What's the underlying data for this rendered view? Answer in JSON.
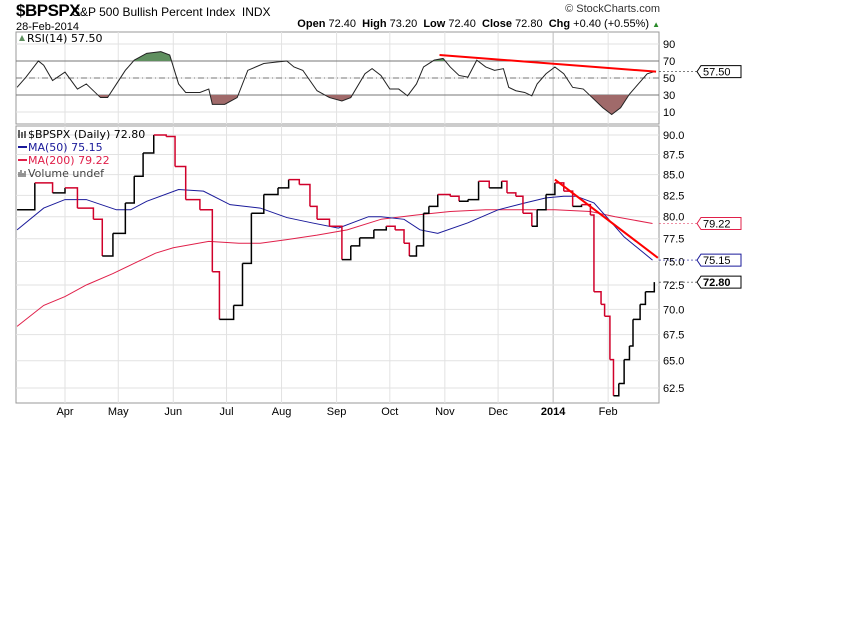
{
  "header": {
    "symbol": "$BPSPX",
    "name": "S&P 500 Bullish Percent Index",
    "exchange": "INDX",
    "copyright": "© StockCharts.com",
    "date": "28-Feb-2014",
    "open_label": "Open",
    "open": "72.40",
    "high_label": "High",
    "high": "73.20",
    "low_label": "Low",
    "low": "72.40",
    "close_label": "Close",
    "close": "72.80",
    "chg_label": "Chg",
    "chg": "+0.40 (+0.55%)",
    "chg_arrow": "▲"
  },
  "colors": {
    "up": "#000000",
    "down": "#d0002a",
    "ma50": "#1a1a9a",
    "ma200": "#e0204a",
    "trend": "#ff0000",
    "overbought": "#5f8f5f",
    "oversold": "#a06a6a",
    "grid": "#e2e2e2"
  },
  "chart_data": [
    {
      "type": "line",
      "title": "RSI(14) 57.50",
      "legend": "RSI(14) 57.50",
      "ylim": [
        0,
        100
      ],
      "yticks": [
        90,
        70,
        50,
        30,
        10
      ],
      "levels": {
        "overbought": 70,
        "mid": 50,
        "oversold": 30
      },
      "last_value_label": "57.50",
      "series": [
        {
          "name": "RSI(14)",
          "points": [
            [
              4,
              39
            ],
            [
              9,
              51
            ],
            [
              16,
              70
            ],
            [
              19,
              65
            ],
            [
              24,
              47
            ],
            [
              31,
              57
            ],
            [
              38,
              37
            ],
            [
              43,
              43
            ],
            [
              51,
              27
            ],
            [
              55,
              27
            ],
            [
              60,
              43
            ],
            [
              65,
              59
            ],
            [
              70,
              71
            ],
            [
              77,
              79
            ],
            [
              85,
              81
            ],
            [
              90,
              77
            ],
            [
              95,
              43
            ],
            [
              99,
              33
            ],
            [
              107,
              33
            ],
            [
              112,
              37
            ],
            [
              114,
              19
            ],
            [
              121,
              19
            ],
            [
              128,
              27
            ],
            [
              134,
              59
            ],
            [
              143,
              67
            ],
            [
              151,
              69
            ],
            [
              156,
              70
            ],
            [
              160,
              63
            ],
            [
              165,
              59
            ],
            [
              173,
              35
            ],
            [
              180,
              27
            ],
            [
              187,
              23
            ],
            [
              192,
              27
            ],
            [
              200,
              55
            ],
            [
              204,
              61
            ],
            [
              209,
              53
            ],
            [
              214,
              37
            ],
            [
              219,
              37
            ],
            [
              224,
              29
            ],
            [
              229,
              43
            ],
            [
              233,
              63
            ],
            [
              239,
              71
            ],
            [
              244,
              73
            ],
            [
              248,
              63
            ],
            [
              253,
              53
            ],
            [
              258,
              51
            ],
            [
              263,
              71
            ],
            [
              268,
              63
            ],
            [
              273,
              59
            ],
            [
              278,
              61
            ],
            [
              281,
              39
            ],
            [
              285,
              35
            ],
            [
              290,
              33
            ],
            [
              294,
              29
            ],
            [
              297,
              43
            ],
            [
              302,
              55
            ],
            [
              307,
              63
            ],
            [
              312,
              55
            ],
            [
              317,
              39
            ],
            [
              323,
              37
            ],
            [
              328,
              27
            ],
            [
              334,
              15
            ],
            [
              339,
              7
            ],
            [
              344,
              15
            ],
            [
              349,
              31
            ],
            [
              354,
              43
            ],
            [
              359,
              55
            ],
            [
              363,
              57.5
            ]
          ]
        }
      ],
      "trendline": [
        [
          242,
          77
        ],
        [
          364,
          57.5
        ]
      ]
    },
    {
      "type": "line",
      "legend": "$BPSPX (Daily) 72.80",
      "scale": "log",
      "ylim": [
        61.2,
        91.7
      ],
      "yticks": [
        "90.0",
        "87.5",
        "85.0",
        "82.5",
        "80.0",
        "77.5",
        "75.0",
        "72.5",
        "70.0",
        "67.5",
        "65.0",
        "62.5"
      ],
      "xticks": [
        {
          "label": "Apr",
          "day": 31
        },
        {
          "label": "May",
          "day": 61
        },
        {
          "label": "Jun",
          "day": 92
        },
        {
          "label": "Jul",
          "day": 122
        },
        {
          "label": "Aug",
          "day": 153
        },
        {
          "label": "Sep",
          "day": 184
        },
        {
          "label": "Oct",
          "day": 214
        },
        {
          "label": "Nov",
          "day": 245
        },
        {
          "label": "Dec",
          "day": 275
        },
        {
          "label": "2014",
          "day": 306,
          "bold": true
        },
        {
          "label": "Feb",
          "day": 337
        }
      ],
      "xlim_days": [
        4,
        364
      ],
      "series": [
        {
          "name": "$BPSPX",
          "label": "$BPSPX (Daily) 72.80",
          "last_label": "72.80",
          "points": [
            [
              4,
              80.8
            ],
            [
              14,
              84.0
            ],
            [
              24,
              82.8
            ],
            [
              31,
              83.4
            ],
            [
              38,
              81.0
            ],
            [
              47,
              79.7
            ],
            [
              52,
              75.6
            ],
            [
              58,
              78.1
            ],
            [
              65,
              81.6
            ],
            [
              70,
              84.8
            ],
            [
              75,
              87.7
            ],
            [
              81,
              90.0
            ],
            [
              88,
              89.8
            ],
            [
              93,
              86.0
            ],
            [
              99,
              82.0
            ],
            [
              107,
              80.8
            ],
            [
              114,
              73.9
            ],
            [
              118,
              69.0
            ],
            [
              126,
              70.4
            ],
            [
              131,
              74.8
            ],
            [
              136,
              80.4
            ],
            [
              143,
              82.6
            ],
            [
              151,
              83.4
            ],
            [
              157,
              84.4
            ],
            [
              163,
              83.8
            ],
            [
              169,
              81.2
            ],
            [
              173,
              79.7
            ],
            [
              180,
              78.9
            ],
            [
              187,
              75.2
            ],
            [
              192,
              76.7
            ],
            [
              197,
              77.6
            ],
            [
              205,
              78.5
            ],
            [
              212,
              78.9
            ],
            [
              217,
              78.5
            ],
            [
              222,
              77.0
            ],
            [
              225,
              75.6
            ],
            [
              229,
              76.7
            ],
            [
              233,
              80.4
            ],
            [
              236,
              81.2
            ],
            [
              241,
              82.6
            ],
            [
              248,
              82.4
            ],
            [
              253,
              81.8
            ],
            [
              258,
              82.0
            ],
            [
              264,
              84.2
            ],
            [
              270,
              83.4
            ],
            [
              277,
              84.2
            ],
            [
              280,
              82.8
            ],
            [
              285,
              82.4
            ],
            [
              289,
              80.4
            ],
            [
              294,
              78.9
            ],
            [
              297,
              80.8
            ],
            [
              302,
              82.6
            ],
            [
              307,
              84.0
            ],
            [
              312,
              83.0
            ],
            [
              317,
              81.2
            ],
            [
              322,
              81.4
            ],
            [
              327,
              80.2
            ],
            [
              329,
              71.8
            ],
            [
              333,
              70.5
            ],
            [
              335,
              69.3
            ],
            [
              338,
              65.1
            ],
            [
              340,
              61.8
            ],
            [
              343,
              62.9
            ],
            [
              346,
              65.1
            ],
            [
              349,
              66.4
            ],
            [
              351,
              69.0
            ],
            [
              355,
              70.5
            ],
            [
              358,
              71.8
            ],
            [
              363,
              72.8
            ]
          ]
        },
        {
          "name": "MA(50)",
          "label": "MA(50) 75.15",
          "last_label": "75.15",
          "points": [
            [
              4,
              78.5
            ],
            [
              19,
              81.0
            ],
            [
              31,
              82.0
            ],
            [
              43,
              82.0
            ],
            [
              60,
              80.8
            ],
            [
              68,
              80.8
            ],
            [
              77,
              81.8
            ],
            [
              95,
              83.2
            ],
            [
              109,
              83.0
            ],
            [
              124,
              81.4
            ],
            [
              141,
              81.0
            ],
            [
              156,
              79.9
            ],
            [
              170,
              79.3
            ],
            [
              185,
              78.7
            ],
            [
              202,
              80.0
            ],
            [
              209,
              80.0
            ],
            [
              222,
              79.7
            ],
            [
              231,
              78.5
            ],
            [
              241,
              78.1
            ],
            [
              258,
              79.3
            ],
            [
              275,
              80.8
            ],
            [
              290,
              81.6
            ],
            [
              302,
              82.2
            ],
            [
              312,
              82.4
            ],
            [
              319,
              82.4
            ],
            [
              329,
              81.6
            ],
            [
              336,
              80.0
            ],
            [
              346,
              77.7
            ],
            [
              356,
              76.1
            ],
            [
              362,
              75.15
            ]
          ]
        },
        {
          "name": "MA(200)",
          "label": "MA(200) 79.22",
          "last_label": "79.22",
          "points": [
            [
              4,
              68.3
            ],
            [
              19,
              70.4
            ],
            [
              31,
              71.3
            ],
            [
              43,
              72.5
            ],
            [
              58,
              73.7
            ],
            [
              70,
              74.8
            ],
            [
              82,
              75.9
            ],
            [
              92,
              76.5
            ],
            [
              112,
              77.2
            ],
            [
              129,
              77.0
            ],
            [
              141,
              77.0
            ],
            [
              156,
              77.4
            ],
            [
              173,
              77.9
            ],
            [
              190,
              78.5
            ],
            [
              209,
              79.7
            ],
            [
              229,
              80.2
            ],
            [
              248,
              80.6
            ],
            [
              268,
              80.8
            ],
            [
              288,
              80.8
            ],
            [
              307,
              80.8
            ],
            [
              327,
              80.6
            ],
            [
              341,
              80.0
            ],
            [
              362,
              79.22
            ]
          ]
        }
      ],
      "extra_legend": "Volume undef",
      "trendline": [
        [
          307,
          84.4
        ],
        [
          365,
          75.4
        ]
      ]
    }
  ]
}
